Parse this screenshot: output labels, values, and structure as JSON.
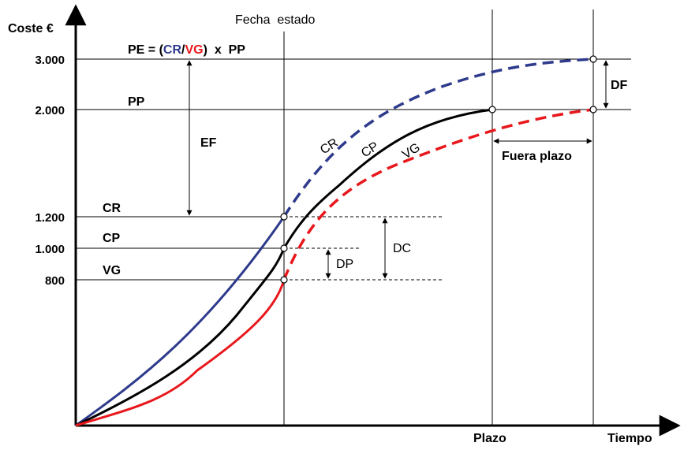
{
  "diagram": {
    "y_axis_label": "Coste €",
    "x_axis_label": "Tiempo",
    "status_date_label": "Fecha  estado",
    "deadline_label": "Plazo",
    "formula": {
      "prefix": "PE = (",
      "cr": "CR",
      "slash": "/",
      "vg": "VG",
      "suffix": ")  x  PP"
    },
    "pp_label": "PP",
    "ef_label": "EF",
    "df_label": "DF",
    "out_of_time_label": "Fuera plazo",
    "dc_label": "DC",
    "dp_label": "DP",
    "level_labels": {
      "cr": "CR",
      "cp": "CP",
      "vg": "VG"
    },
    "curve_labels": {
      "cr": "CR",
      "cp": "CP",
      "vg": "VG"
    },
    "y_ticks": [
      {
        "value": 3000,
        "label": "3.000"
      },
      {
        "value": 2000,
        "label": "2.000"
      },
      {
        "value": 1200,
        "label": "1.200"
      },
      {
        "value": 1000,
        "label": "1.000"
      },
      {
        "value": 800,
        "label": "800"
      }
    ],
    "colors": {
      "cr": "#2E3A8C",
      "cp": "#000000",
      "vg": "#E8171B"
    }
  },
  "chart_data": {
    "type": "line",
    "series": [
      {
        "name": "CR",
        "style": "solid-then-dashed",
        "status_date_value": 1200,
        "final_value": 3000
      },
      {
        "name": "CP",
        "style": "solid",
        "status_date_value": 1000,
        "final_value": 2000
      },
      {
        "name": "VG",
        "style": "solid-then-dashed",
        "status_date_value": 800,
        "final_value": 2000
      }
    ],
    "y_labeled_values": [
      800,
      1000,
      1200,
      2000,
      3000
    ]
  }
}
